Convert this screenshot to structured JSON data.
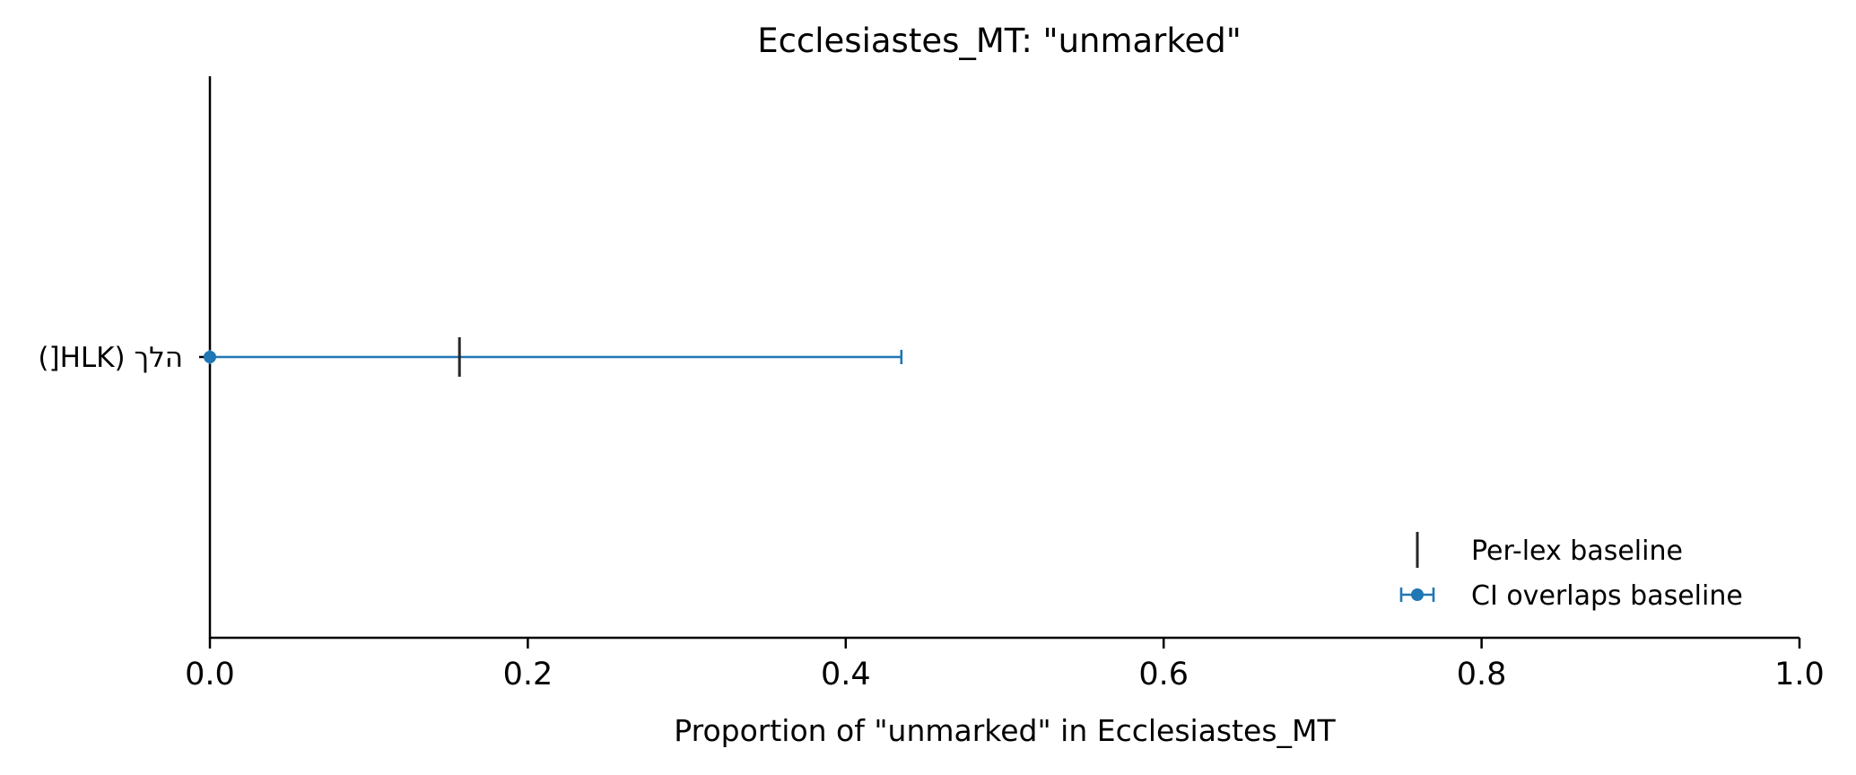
{
  "chart_data": {
    "type": "scatter",
    "title": "Ecclesiastes_MT: \"unmarked\"",
    "xlabel": "Proportion of \"unmarked\" in Ecclesiastes_MT",
    "ylabel": "",
    "xlim": [
      0.0,
      1.0
    ],
    "xticks": [
      0.0,
      0.2,
      0.4,
      0.6,
      0.8,
      1.0
    ],
    "xtick_labels": [
      "0.0",
      "0.2",
      "0.4",
      "0.6",
      "0.8",
      "1.0"
    ],
    "categories": [
      "הלך (HLK[)"
    ],
    "points": [
      {
        "category": "הלך (HLK[)",
        "value": 0.0,
        "ci_low": 0.0,
        "ci_high": 0.435,
        "baseline": 0.157,
        "group": "CI overlaps baseline"
      }
    ],
    "legend": {
      "placement": "lower-right",
      "entries": [
        {
          "label": "Per-lex baseline",
          "marker": "vertical-line"
        },
        {
          "label": "CI overlaps baseline",
          "marker": "errorbar-point"
        }
      ]
    },
    "grid": false,
    "colors": {
      "point": "#1f77b4",
      "baseline": "#262626",
      "axis": "#000000"
    }
  }
}
